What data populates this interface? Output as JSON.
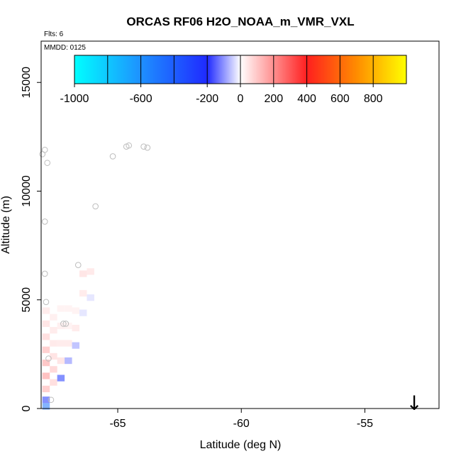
{
  "chart_data": {
    "type": "heatmap",
    "title": "ORCAS RF06 H2O_NOAA_m_VMR_VXL",
    "flights_label": "Flts: 6",
    "date_label": "MMDD: 0125",
    "xlabel": "Latitude (deg N)",
    "ylabel": "Altitude (m)",
    "xlim": [
      -68.1,
      -52.0
    ],
    "ylim": [
      0,
      16900
    ],
    "xticks": [
      -65,
      -60,
      -55
    ],
    "yticks": [
      0,
      5000,
      10000,
      15000
    ],
    "grid": false,
    "colorbar": {
      "placement": "top-inside",
      "range": [
        -1000,
        1000
      ],
      "ticks": [
        -1000,
        -600,
        -200,
        0,
        200,
        400,
        600,
        800
      ],
      "colors": [
        "#00ffff",
        "#1e90ff",
        "#1f2aff",
        "#ffffff",
        "#ff1f1f",
        "#ff8c00",
        "#ffff00"
      ]
    },
    "cells": [
      {
        "lat": -67.9,
        "alt": 100,
        "value": -500
      },
      {
        "lat": -67.9,
        "alt": 400,
        "value": -250
      },
      {
        "lat": -67.9,
        "alt": 900,
        "value": 150
      },
      {
        "lat": -67.9,
        "alt": 1500,
        "value": 200
      },
      {
        "lat": -67.9,
        "alt": 2100,
        "value": 180
      },
      {
        "lat": -67.9,
        "alt": 2700,
        "value": 150
      },
      {
        "lat": -67.9,
        "alt": 3300,
        "value": 100
      },
      {
        "lat": -67.9,
        "alt": 3900,
        "value": 80
      },
      {
        "lat": -67.9,
        "alt": 4500,
        "value": 60
      },
      {
        "lat": -67.6,
        "alt": 1200,
        "value": 100
      },
      {
        "lat": -67.6,
        "alt": 1800,
        "value": 120
      },
      {
        "lat": -67.6,
        "alt": 2400,
        "value": 90
      },
      {
        "lat": -67.6,
        "alt": 3000,
        "value": 70
      },
      {
        "lat": -67.6,
        "alt": 3600,
        "value": 60
      },
      {
        "lat": -67.6,
        "alt": 4200,
        "value": 50
      },
      {
        "lat": -67.3,
        "alt": 1400,
        "value": -250
      },
      {
        "lat": -67.3,
        "alt": 2200,
        "value": 80
      },
      {
        "lat": -67.3,
        "alt": 3000,
        "value": 60
      },
      {
        "lat": -67.3,
        "alt": 3800,
        "value": 50
      },
      {
        "lat": -67.3,
        "alt": 4600,
        "value": 40
      },
      {
        "lat": -67.0,
        "alt": 2200,
        "value": -120
      },
      {
        "lat": -67.0,
        "alt": 3000,
        "value": 60
      },
      {
        "lat": -67.0,
        "alt": 3800,
        "value": 40
      },
      {
        "lat": -67.0,
        "alt": 4600,
        "value": 40
      },
      {
        "lat": -66.7,
        "alt": 2900,
        "value": -100
      },
      {
        "lat": -66.7,
        "alt": 3700,
        "value": 60
      },
      {
        "lat": -66.7,
        "alt": 4500,
        "value": 40
      },
      {
        "lat": -66.4,
        "alt": 4400,
        "value": -40
      },
      {
        "lat": -66.4,
        "alt": 5300,
        "value": 60
      },
      {
        "lat": -66.4,
        "alt": 6200,
        "value": 80
      },
      {
        "lat": -66.1,
        "alt": 5100,
        "value": -40
      },
      {
        "lat": -66.1,
        "alt": 6300,
        "value": 70
      }
    ],
    "points": [
      {
        "lat": -68.05,
        "alt": 11700
      },
      {
        "lat": -67.95,
        "alt": 11900
      },
      {
        "lat": -67.85,
        "alt": 11300
      },
      {
        "lat": -67.95,
        "alt": 8600
      },
      {
        "lat": -67.95,
        "alt": 6200
      },
      {
        "lat": -67.9,
        "alt": 4900
      },
      {
        "lat": -67.8,
        "alt": 2300
      },
      {
        "lat": -67.7,
        "alt": 400
      },
      {
        "lat": -67.2,
        "alt": 3900
      },
      {
        "lat": -67.1,
        "alt": 3900
      },
      {
        "lat": -66.6,
        "alt": 6600
      },
      {
        "lat": -65.9,
        "alt": 9300
      },
      {
        "lat": -65.2,
        "alt": 11600
      },
      {
        "lat": -64.65,
        "alt": 12050
      },
      {
        "lat": -64.55,
        "alt": 12100
      },
      {
        "lat": -63.95,
        "alt": 12050
      },
      {
        "lat": -63.8,
        "alt": 12000
      }
    ],
    "marker": {
      "symbol": "↓",
      "lat": -53.0
    }
  }
}
